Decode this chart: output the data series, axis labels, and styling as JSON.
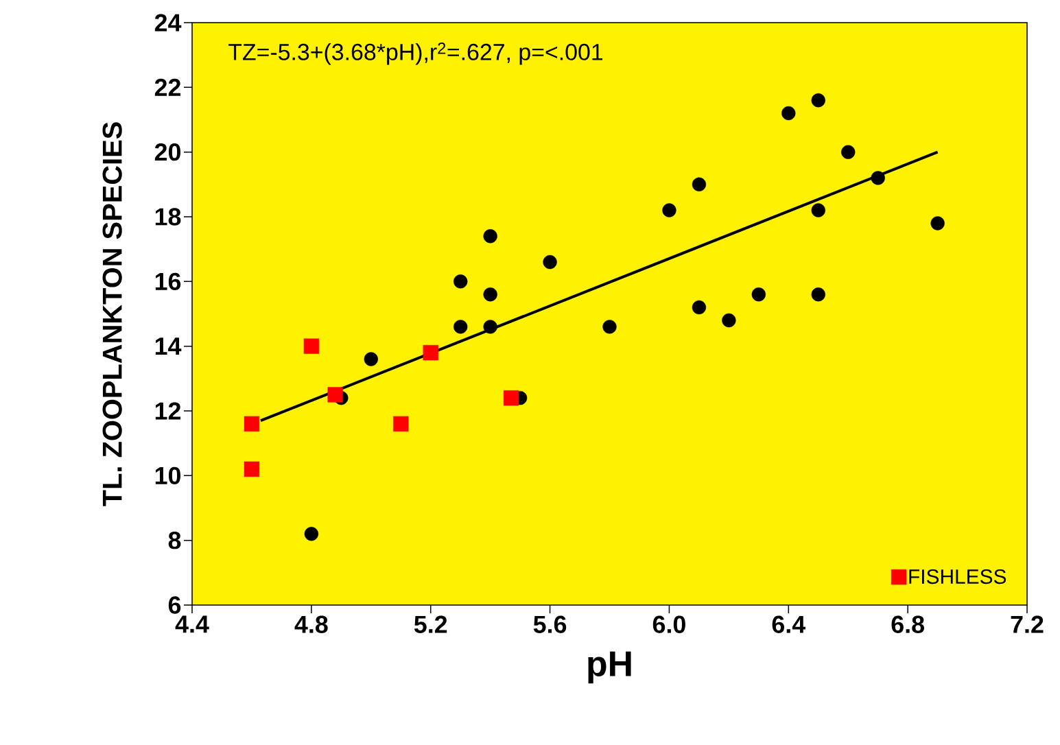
{
  "chart_data": {
    "type": "scatter",
    "xlabel": "pH",
    "ylabel": "TL. ZOOPLANKTON SPECIES",
    "annotations": [
      "TZ=-5.3+(3.68*pH),r$^{2}$=.627, p=<.001"
    ],
    "xlim": [
      4.4,
      7.2
    ],
    "ylim": [
      6,
      24
    ],
    "xticks": [
      4.4,
      4.8,
      5.2,
      5.6,
      {
        "value": 6,
        "label": "6.0"
      },
      6.4,
      6.8,
      7.2
    ],
    "yticks": [
      6,
      8,
      10,
      12,
      14,
      16,
      18,
      20,
      22,
      24
    ],
    "grid": false,
    "legend": "bottom right",
    "series": [
      {
        "color": "#000000",
        "marker": "circle",
        "x": [
          4.8,
          4.9,
          5.0,
          5.3,
          5.3,
          5.4,
          5.4,
          5.4,
          5.5,
          5.6,
          5.8,
          6.0,
          6.1,
          6.1,
          6.2,
          6.3,
          6.4,
          6.5,
          6.5,
          6.5,
          6.6,
          6.7,
          6.9
        ],
        "values": [
          8.2,
          12.4,
          13.6,
          16.0,
          14.6,
          17.4,
          15.6,
          14.6,
          12.4,
          16.6,
          14.6,
          18.2,
          19.0,
          15.2,
          14.8,
          15.6,
          21.2,
          21.6,
          18.2,
          15.6,
          20.0,
          19.2,
          17.8
        ]
      },
      {
        "name": "FISHLESS",
        "color": "#ff0000",
        "marker": "square",
        "x": [
          4.6,
          4.6,
          4.8,
          4.88,
          5.1,
          5.2,
          5.47
        ],
        "values": [
          11.6,
          10.2,
          14.0,
          12.5,
          11.6,
          13.8,
          12.4
        ]
      },
      {
        "type": "line",
        "color": "#000000",
        "marker": "none",
        "x": [
          4.63,
          6.9
        ],
        "values": [
          11.7,
          20.0
        ]
      }
    ]
  }
}
